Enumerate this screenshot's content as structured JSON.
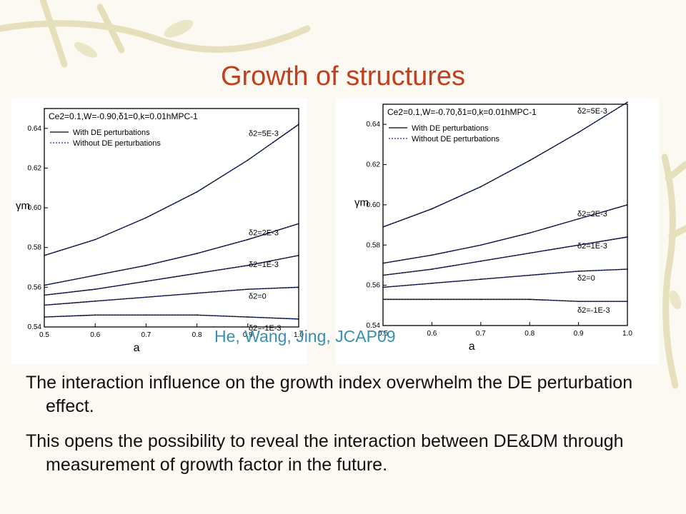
{
  "slide": {
    "title": "Growth of structures",
    "citation": "He, Wang, Jing, JCAP09",
    "bullets": [
      "The interaction influence on the growth index overwhelm the DE perturbation effect.",
      "This opens the possibility to reveal the interaction between DE&DM through measurement of growth factor in the future."
    ]
  },
  "chart_data": [
    {
      "type": "line",
      "panel": "left",
      "annotation": "Ce2=0.1,W=-0.90,δ1=0,k=0.01hMPC-1",
      "legend": [
        "With DE perturbations",
        "Without DE perturbations"
      ],
      "legend_position": "top-left",
      "xlabel": "a",
      "ylabel": "γm",
      "xlim": [
        0.5,
        1.0
      ],
      "ylim": [
        0.54,
        0.65
      ],
      "xticks": [
        "0.5",
        "0.6",
        "0.7",
        "0.8",
        "0.9",
        "1.0"
      ],
      "yticks": [
        "0.54",
        "0.56",
        "0.58",
        "0.60",
        "0.62",
        "0.64"
      ],
      "x": [
        0.5,
        0.6,
        0.7,
        0.8,
        0.9,
        1.0
      ],
      "series": [
        {
          "name": "δ2=5E-3",
          "values": [
            0.576,
            0.584,
            0.595,
            0.608,
            0.624,
            0.642
          ]
        },
        {
          "name": "δ2=2E-3",
          "values": [
            0.561,
            0.566,
            0.571,
            0.577,
            0.584,
            0.592
          ]
        },
        {
          "name": "δ2=1E-3",
          "values": [
            0.556,
            0.559,
            0.563,
            0.567,
            0.571,
            0.576
          ]
        },
        {
          "name": "δ2=0",
          "values": [
            0.551,
            0.553,
            0.555,
            0.557,
            0.559,
            0.56
          ]
        },
        {
          "name": "δ2=-1E-3",
          "values": [
            0.545,
            0.546,
            0.546,
            0.546,
            0.545,
            0.544
          ]
        }
      ]
    },
    {
      "type": "line",
      "panel": "right",
      "annotation": "Ce2=0.1,W=-0.70,δ1=0,k=0.01hMPC-1",
      "legend": [
        "With DE perturbations",
        "Without DE perturbations"
      ],
      "legend_position": "top-left",
      "xlabel": "a",
      "ylabel": "γm",
      "xlim": [
        0.5,
        1.0
      ],
      "ylim": [
        0.54,
        0.65
      ],
      "xticks": [
        "0.5",
        "0.6",
        "0.7",
        "0.8",
        "0.9",
        "1.0"
      ],
      "yticks": [
        "0.54",
        "0.56",
        "0.58",
        "0.60",
        "0.62",
        "0.64"
      ],
      "x": [
        0.5,
        0.6,
        0.7,
        0.8,
        0.9,
        1.0
      ],
      "series": [
        {
          "name": "δ2=5E-3",
          "values": [
            0.589,
            0.598,
            0.609,
            0.622,
            0.636,
            0.651
          ]
        },
        {
          "name": "δ2=2E-3",
          "values": [
            0.571,
            0.575,
            0.58,
            0.586,
            0.593,
            0.6
          ]
        },
        {
          "name": "δ2=1E-3",
          "values": [
            0.565,
            0.568,
            0.572,
            0.576,
            0.58,
            0.584
          ]
        },
        {
          "name": "δ2=0",
          "values": [
            0.559,
            0.561,
            0.563,
            0.565,
            0.567,
            0.568
          ]
        },
        {
          "name": "δ2=-1E-3",
          "values": [
            0.553,
            0.553,
            0.553,
            0.553,
            0.552,
            0.552
          ]
        }
      ]
    }
  ]
}
